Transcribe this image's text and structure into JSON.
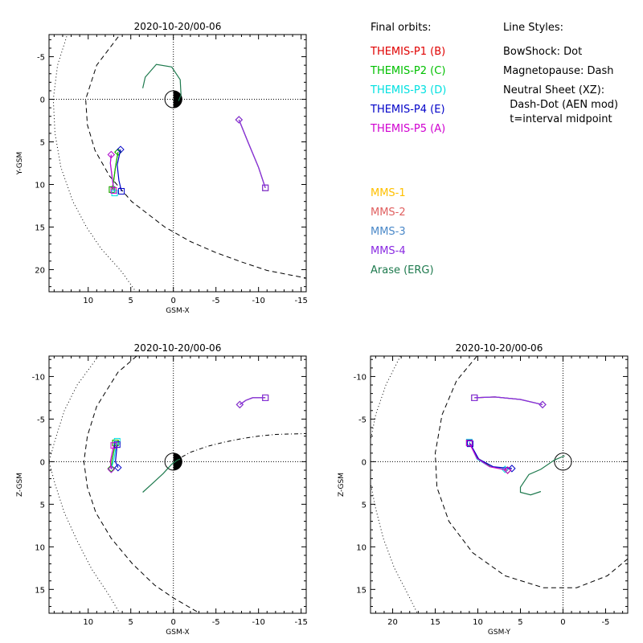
{
  "chart_data": [
    {
      "type": "scatter",
      "title": "2020-10-20/00-06",
      "xlabel": "GSM-X",
      "ylabel": "Y-GSM",
      "xlim": [
        14.6,
        -15.6
      ],
      "ylim": [
        -7.6,
        22.6
      ],
      "xticks": [
        10,
        5,
        0,
        -5,
        -10,
        -15
      ],
      "yticks": [
        -5,
        0,
        5,
        10,
        15,
        20
      ],
      "xtick_labels": [
        "10",
        "5",
        "0",
        "-5",
        "-10",
        "-15"
      ],
      "ytick_labels": [
        "-5",
        "0",
        "5",
        "10",
        "15",
        "20"
      ],
      "earth": {
        "x": 0,
        "y": 0,
        "r": 1,
        "night_side": "right"
      },
      "reference_lines": [
        {
          "name": "Magnetopause",
          "style": "dash",
          "points": [
            [
              5.9,
              -8.1
            ],
            [
              9.0,
              -4.0
            ],
            [
              10.3,
              0
            ],
            [
              10.1,
              3
            ],
            [
              9.2,
              6
            ],
            [
              7.5,
              9
            ],
            [
              4.9,
              12
            ],
            [
              1.0,
              15
            ],
            [
              -2,
              16.7
            ],
            [
              -5,
              18
            ],
            [
              -8,
              19.1
            ],
            [
              -11,
              20.1
            ],
            [
              -15.6,
              21.0
            ]
          ]
        },
        {
          "name": "BowShock",
          "style": "dot",
          "points": [
            [
              12.3,
              -8.1
            ],
            [
              13.6,
              -4
            ],
            [
              14.1,
              0
            ],
            [
              13.9,
              4
            ],
            [
              13.2,
              8
            ],
            [
              11.8,
              12
            ],
            [
              10.2,
              15
            ],
            [
              8.5,
              17.5
            ],
            [
              6.1,
              20.2
            ],
            [
              4.4,
              22.6
            ]
          ]
        }
      ],
      "series": [
        {
          "name": "THEMIS-P1 (B)",
          "color": "#e00000",
          "x": [
            7.2,
            7.0,
            6.8,
            6.5
          ],
          "y": [
            10.6,
            9.5,
            8.0,
            6.2
          ],
          "start": "square",
          "end": "diamond"
        },
        {
          "name": "THEMIS-P2 (C)",
          "color": "#00c000",
          "x": [
            7.2,
            7.0,
            6.8,
            6.5
          ],
          "y": [
            10.6,
            9.5,
            8.0,
            6.2
          ],
          "start": "square",
          "end": "diamond"
        },
        {
          "name": "THEMIS-P3 (D)",
          "color": "#00e0e0",
          "x": [
            6.9,
            7.2,
            7.4,
            7.3
          ],
          "y": [
            11.0,
            9.2,
            7.5,
            6.5
          ],
          "start": "square",
          "end": "diamond"
        },
        {
          "name": "THEMIS-P4 (E)",
          "color": "#0000c8",
          "x": [
            6.1,
            6.4,
            6.6,
            6.2
          ],
          "y": [
            10.8,
            9.5,
            7.7,
            5.9
          ],
          "start": "square",
          "end": "diamond"
        },
        {
          "name": "THEMIS-P5 (A)",
          "color": "#d000d0",
          "x": [
            7.0,
            7.2,
            7.4,
            7.3
          ],
          "y": [
            10.7,
            9.0,
            7.5,
            6.5
          ],
          "start": "square",
          "end": "diamond"
        },
        {
          "name": "MMS-1",
          "color": "#ffc000",
          "x": [
            -7.7,
            -8.8,
            -10.0,
            -10.8
          ],
          "y": [
            2.4,
            5.1,
            8.0,
            10.4
          ],
          "start": "diamond",
          "end": "square"
        },
        {
          "name": "MMS-2",
          "color": "#e06060",
          "x": [
            -7.7,
            -8.8,
            -10.0,
            -10.8
          ],
          "y": [
            2.4,
            5.1,
            8.0,
            10.4
          ],
          "start": "diamond",
          "end": "square"
        },
        {
          "name": "MMS-3",
          "color": "#4a88c8",
          "x": [
            -7.7,
            -8.8,
            -10.0,
            -10.8
          ],
          "y": [
            2.4,
            5.1,
            8.0,
            10.4
          ],
          "start": "diamond",
          "end": "square"
        },
        {
          "name": "MMS-4",
          "color": "#8a2be2",
          "x": [
            -7.7,
            -8.8,
            -10.0,
            -10.8
          ],
          "y": [
            2.4,
            5.1,
            8.0,
            10.4
          ],
          "start": "diamond",
          "end": "square"
        },
        {
          "name": "Arase (ERG)",
          "color": "#1e7a4e",
          "x": [
            3.6,
            3.3,
            2.0,
            0.2,
            -0.8,
            -0.9,
            -0.6
          ],
          "y": [
            -1.3,
            -2.6,
            -4.1,
            -3.8,
            -2.3,
            -0.5,
            0.2
          ],
          "start": "",
          "end": ""
        }
      ]
    },
    {
      "type": "scatter",
      "title": "2020-10-20/00-06",
      "xlabel": "GSM-X",
      "ylabel": "Z-GSM",
      "xlim": [
        14.6,
        -15.6
      ],
      "ylim": [
        -12.4,
        17.8
      ],
      "xticks": [
        10,
        5,
        0,
        -5,
        -10,
        -15
      ],
      "yticks": [
        -10,
        -5,
        0,
        5,
        10,
        15
      ],
      "xtick_labels": [
        "10",
        "5",
        "0",
        "-5",
        "-10",
        "-15"
      ],
      "ytick_labels": [
        "-10",
        "-5",
        "0",
        "5",
        "10",
        "15"
      ],
      "earth": {
        "x": 0,
        "y": 0,
        "r": 1,
        "night_side": "right"
      },
      "reference_lines": [
        {
          "name": "Magnetopause",
          "style": "dash",
          "points": [
            [
              4.3,
              -12.4
            ],
            [
              6.5,
              -10.5
            ],
            [
              9.0,
              -6.5
            ],
            [
              10.1,
              -3
            ],
            [
              10.5,
              0
            ],
            [
              10.1,
              3
            ],
            [
              9.1,
              6
            ],
            [
              7.3,
              9
            ],
            [
              4.8,
              12
            ],
            [
              2.2,
              14.5
            ],
            [
              0,
              16
            ],
            [
              -3.1,
              17.8
            ]
          ]
        },
        {
          "name": "BowShock",
          "style": "dot",
          "points": [
            [
              8.8,
              -12.4
            ],
            [
              11.3,
              -9
            ],
            [
              12.8,
              -6
            ],
            [
              13.9,
              -2.5
            ],
            [
              14.6,
              0
            ],
            [
              13.9,
              2.6
            ],
            [
              12.8,
              6
            ],
            [
              11.3,
              9.3
            ],
            [
              9.6,
              12.6
            ],
            [
              7.6,
              15.6
            ],
            [
              6.3,
              17.8
            ]
          ]
        },
        {
          "name": "Neutral Sheet",
          "style": "dashdot",
          "points": [
            [
              0,
              0
            ],
            [
              -2,
              -1.1
            ],
            [
              -4,
              -1.8
            ],
            [
              -6,
              -2.3
            ],
            [
              -8,
              -2.7
            ],
            [
              -10,
              -3.0
            ],
            [
              -12,
              -3.2
            ],
            [
              -15.6,
              -3.3
            ]
          ]
        }
      ],
      "series": [
        {
          "name": "THEMIS-P1 (B)",
          "color": "#e00000",
          "x": [
            6.8,
            7.0,
            7.2,
            7.3
          ],
          "y": [
            -2.2,
            -1.2,
            -0.2,
            0.8
          ],
          "start": "square",
          "end": "diamond"
        },
        {
          "name": "THEMIS-P2 (C)",
          "color": "#00c000",
          "x": [
            6.8,
            7.0,
            7.2,
            7.3
          ],
          "y": [
            -2.2,
            -1.2,
            -0.2,
            0.8
          ],
          "start": "square",
          "end": "diamond"
        },
        {
          "name": "THEMIS-P3 (D)",
          "color": "#00e0e0",
          "x": [
            6.6,
            6.8,
            7.0,
            7.3
          ],
          "y": [
            -2.4,
            -1.3,
            -0.2,
            0.9
          ],
          "start": "square",
          "end": "diamond"
        },
        {
          "name": "THEMIS-P4 (E)",
          "color": "#0000c8",
          "x": [
            6.6,
            6.7,
            6.8,
            6.5
          ],
          "y": [
            -2.0,
            -1.0,
            0.0,
            0.7
          ],
          "start": "square",
          "end": "diamond"
        },
        {
          "name": "THEMIS-P5 (A)",
          "color": "#d000d0",
          "x": [
            7.0,
            7.2,
            7.4,
            7.3
          ],
          "y": [
            -1.9,
            -1.0,
            0.0,
            0.9
          ],
          "start": "square",
          "end": "diamond"
        },
        {
          "name": "MMS-1",
          "color": "#ffc000",
          "x": [
            -7.8,
            -8.5,
            -9.3,
            -10.8
          ],
          "y": [
            -6.7,
            -7.2,
            -7.5,
            -7.5
          ],
          "start": "diamond",
          "end": "square"
        },
        {
          "name": "MMS-2",
          "color": "#e06060",
          "x": [
            -7.8,
            -8.5,
            -9.3,
            -10.8
          ],
          "y": [
            -6.7,
            -7.2,
            -7.5,
            -7.5
          ],
          "start": "diamond",
          "end": "square"
        },
        {
          "name": "MMS-3",
          "color": "#4a88c8",
          "x": [
            -7.8,
            -8.5,
            -9.3,
            -10.8
          ],
          "y": [
            -6.7,
            -7.2,
            -7.5,
            -7.5
          ],
          "start": "diamond",
          "end": "square"
        },
        {
          "name": "MMS-4",
          "color": "#8a2be2",
          "x": [
            -7.8,
            -8.5,
            -9.3,
            -10.8
          ],
          "y": [
            -6.7,
            -7.2,
            -7.5,
            -7.5
          ],
          "start": "diamond",
          "end": "square"
        },
        {
          "name": "Arase (ERG)",
          "color": "#1e7a4e",
          "x": [
            3.6,
            2.4,
            1.2,
            0.2,
            -0.5,
            -0.8
          ],
          "y": [
            3.6,
            2.5,
            1.4,
            0.3,
            -0.2,
            -0.3
          ],
          "start": "",
          "end": ""
        }
      ]
    },
    {
      "type": "scatter",
      "title": "2020-10-20/00-06",
      "xlabel": "GSM-Y",
      "ylabel": "Z-GSM",
      "xlim": [
        22.6,
        -7.6
      ],
      "ylim": [
        -12.4,
        17.8
      ],
      "xticks": [
        20,
        15,
        10,
        5,
        0,
        -5
      ],
      "yticks": [
        -10,
        -5,
        0,
        5,
        10,
        15
      ],
      "xtick_labels": [
        "20",
        "15",
        "10",
        "5",
        "0",
        "-5"
      ],
      "ytick_labels": [
        "-10",
        "-5",
        "0",
        "5",
        "10",
        "15"
      ],
      "earth": {
        "x": 0,
        "y": 0,
        "r": 1,
        "night_side": "none"
      },
      "reference_lines": [
        {
          "name": "Magnetopause",
          "style": "dash",
          "points": [
            [
              10.1,
              -12.4
            ],
            [
              12.5,
              -9.5
            ],
            [
              14.2,
              -5.5
            ],
            [
              15.0,
              -1
            ],
            [
              14.8,
              3
            ],
            [
              13.4,
              7
            ],
            [
              10.6,
              10.7
            ],
            [
              6.8,
              13.4
            ],
            [
              2.3,
              14.8
            ],
            [
              -1.6,
              14.8
            ],
            [
              -5.2,
              13.4
            ],
            [
              -7.6,
              11.4
            ]
          ]
        },
        {
          "name": "BowShock",
          "style": "dot",
          "points": [
            [
              19.1,
              -12.4
            ],
            [
              20.8,
              -9
            ],
            [
              22.0,
              -5.5
            ],
            [
              22.6,
              -2.5
            ],
            [
              22.6,
              2.5
            ],
            [
              22.0,
              5.5
            ],
            [
              21.1,
              9
            ],
            [
              19.8,
              12.5
            ],
            [
              18.1,
              15.8
            ],
            [
              17.1,
              17.8
            ]
          ]
        }
      ],
      "series": [
        {
          "name": "THEMIS-P1 (B)",
          "color": "#e00000",
          "x": [
            11.0,
            10.0,
            8.5,
            6.5
          ],
          "y": [
            -2.2,
            -0.4,
            0.6,
            1.0
          ],
          "start": "square",
          "end": "diamond"
        },
        {
          "name": "THEMIS-P2 (C)",
          "color": "#00c000",
          "x": [
            11.0,
            10.0,
            8.5,
            6.5
          ],
          "y": [
            -2.2,
            -0.4,
            0.6,
            1.0
          ],
          "start": "square",
          "end": "diamond"
        },
        {
          "name": "THEMIS-P3 (D)",
          "color": "#00e0e0",
          "x": [
            11.0,
            10.1,
            8.6,
            6.8
          ],
          "y": [
            -2.3,
            -0.3,
            0.6,
            0.9
          ],
          "start": "square",
          "end": "diamond"
        },
        {
          "name": "THEMIS-P4 (E)",
          "color": "#0000c8",
          "x": [
            10.9,
            9.9,
            8.2,
            6.0
          ],
          "y": [
            -2.1,
            -0.3,
            0.6,
            0.8
          ],
          "start": "square",
          "end": "diamond"
        },
        {
          "name": "THEMIS-P5 (A)",
          "color": "#d000d0",
          "x": [
            11.0,
            10.1,
            8.6,
            6.5
          ],
          "y": [
            -2.2,
            -0.4,
            0.6,
            1.0
          ],
          "start": "square",
          "end": "diamond"
        },
        {
          "name": "MMS-1",
          "color": "#ffc000",
          "x": [
            2.4,
            5.0,
            8.0,
            10.4
          ],
          "y": [
            -6.7,
            -7.3,
            -7.6,
            -7.5
          ],
          "start": "diamond",
          "end": "square"
        },
        {
          "name": "MMS-2",
          "color": "#e06060",
          "x": [
            2.4,
            5.0,
            8.0,
            10.4
          ],
          "y": [
            -6.7,
            -7.3,
            -7.6,
            -7.5
          ],
          "start": "diamond",
          "end": "square"
        },
        {
          "name": "MMS-3",
          "color": "#4a88c8",
          "x": [
            2.4,
            5.0,
            8.0,
            10.4
          ],
          "y": [
            -6.7,
            -7.3,
            -7.6,
            -7.5
          ],
          "start": "diamond",
          "end": "square"
        },
        {
          "name": "MMS-4",
          "color": "#8a2be2",
          "x": [
            2.4,
            5.0,
            8.0,
            10.4
          ],
          "y": [
            -6.7,
            -7.3,
            -7.6,
            -7.5
          ],
          "start": "diamond",
          "end": "square"
        },
        {
          "name": "Arase (ERG)",
          "color": "#1e7a4e",
          "x": [
            -0.2,
            1.0,
            2.6,
            4.0,
            5.0,
            5.0,
            3.8,
            2.6
          ],
          "y": [
            -0.7,
            -0.2,
            0.9,
            1.5,
            3.0,
            3.6,
            3.9,
            3.5
          ],
          "start": "",
          "end": ""
        }
      ]
    }
  ],
  "legend": {
    "final_orbits_title": "Final orbits:",
    "line_styles_title": "Line Styles:",
    "line_styles": [
      "BowShock: Dot",
      "Magnetopause: Dash",
      "Neutral Sheet (XZ):",
      "  Dash-Dot (AEN mod)",
      "  t=interval midpoint"
    ],
    "themis": [
      {
        "label": "THEMIS-P1 (B)",
        "color": "#e00000"
      },
      {
        "label": "THEMIS-P2 (C)",
        "color": "#00c000"
      },
      {
        "label": "THEMIS-P3 (D)",
        "color": "#00e0e0"
      },
      {
        "label": "THEMIS-P4 (E)",
        "color": "#0000c8"
      },
      {
        "label": "THEMIS-P5 (A)",
        "color": "#d000d0"
      }
    ],
    "others": [
      {
        "label": "MMS-1",
        "color": "#ffc000"
      },
      {
        "label": "MMS-2",
        "color": "#e06060"
      },
      {
        "label": "MMS-3",
        "color": "#4a88c8"
      },
      {
        "label": "MMS-4",
        "color": "#8a2be2"
      },
      {
        "label": "Arase (ERG)",
        "color": "#1e7a4e"
      }
    ]
  }
}
